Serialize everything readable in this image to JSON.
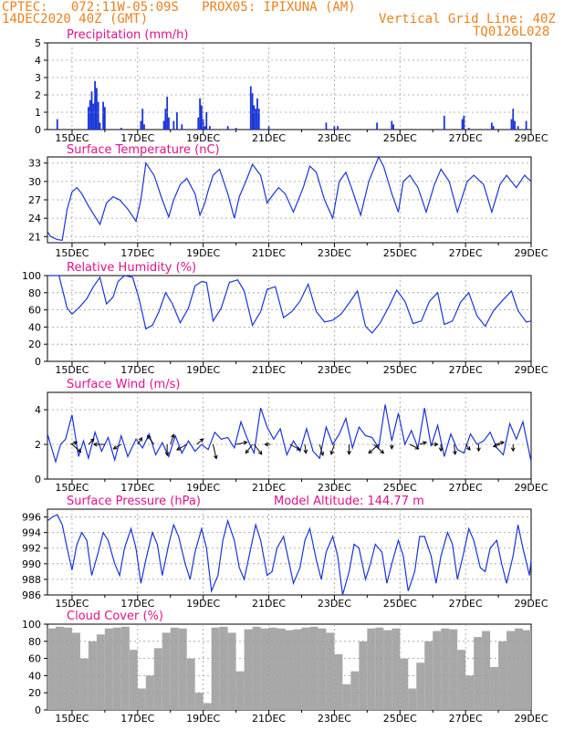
{
  "header": {
    "line1": "CPTEC:   072:11W-05:09S   PROX05: IPIXUNA (AM)",
    "line2_left": "14DEC2020 40Z (GMT)",
    "line2_right": "Vertical Grid Line: 40Z",
    "line3_right": "TQ0126L028"
  },
  "x_ticks": [
    "15DEC",
    "17DEC",
    "19DEC",
    "21DEC",
    "23DEC",
    "25DEC",
    "27DEC",
    "29DEC"
  ],
  "colors": {
    "header": "#e8821e",
    "title": "#e0128a",
    "series": "#1a35d8",
    "cloud": "#a8a8a8",
    "grid": "#9a9a9a",
    "arrow": "#000000"
  },
  "chart_data": [
    {
      "type": "bar",
      "title": "Precipitation (mm/h)",
      "xlim": [
        14.25,
        29.0
      ],
      "ylim": [
        0,
        5
      ],
      "yticks": [
        0,
        1,
        2,
        3,
        4,
        5
      ],
      "x": [
        14.55,
        15.5,
        15.55,
        15.6,
        15.65,
        15.7,
        15.75,
        15.8,
        15.85,
        15.95,
        16.0,
        16.5,
        17.1,
        17.15,
        17.2,
        17.8,
        17.85,
        17.9,
        17.95,
        18.1,
        18.2,
        18.35,
        18.85,
        18.9,
        18.95,
        19.0,
        19.05,
        19.1,
        19.2,
        19.75,
        20.0,
        20.45,
        20.5,
        20.55,
        20.6,
        20.65,
        20.7,
        21.0,
        22.75,
        23.0,
        23.1,
        24.3,
        24.75,
        24.8,
        26.35,
        26.9,
        26.95,
        27.1,
        27.8,
        27.85,
        28.4,
        28.45,
        28.5,
        28.6,
        28.85
      ],
      "values": [
        0.6,
        1.3,
        1.7,
        2.2,
        1.5,
        2.8,
        2.4,
        1.6,
        0.4,
        1.6,
        1.3,
        0.1,
        0.5,
        1.2,
        0.3,
        0.5,
        1.2,
        1.9,
        0.7,
        0.5,
        1.0,
        0.3,
        0.7,
        1.8,
        1.4,
        0.6,
        0.2,
        1.0,
        0.2,
        0.2,
        0.1,
        2.5,
        2.1,
        1.4,
        1.2,
        1.8,
        1.2,
        0.2,
        0.4,
        0.2,
        0.2,
        0.4,
        0.5,
        0.3,
        0.8,
        0.6,
        0.8,
        0.1,
        0.4,
        0.2,
        0.6,
        1.2,
        0.5,
        0.2,
        0.5
      ]
    },
    {
      "type": "line",
      "title": "Surface Temperature (nC)",
      "xlim": [
        14.25,
        29.0
      ],
      "ylim": [
        20,
        34
      ],
      "yticks": [
        21,
        24,
        27,
        30,
        33
      ],
      "x": [
        14.25,
        14.35,
        14.55,
        14.7,
        14.85,
        15.0,
        15.15,
        15.3,
        15.5,
        15.85,
        16.05,
        16.25,
        16.45,
        16.7,
        16.95,
        17.1,
        17.25,
        17.5,
        17.75,
        17.95,
        18.1,
        18.3,
        18.5,
        18.75,
        18.9,
        19.05,
        19.15,
        19.3,
        19.5,
        19.75,
        19.95,
        20.1,
        20.3,
        20.5,
        20.75,
        20.95,
        21.15,
        21.3,
        21.5,
        21.75,
        22.05,
        22.25,
        22.45,
        22.7,
        22.95,
        23.15,
        23.35,
        23.55,
        23.8,
        24.05,
        24.35,
        24.5,
        24.75,
        24.95,
        25.1,
        25.3,
        25.55,
        25.8,
        26.05,
        26.25,
        26.5,
        26.75,
        27.05,
        27.25,
        27.55,
        27.8,
        28.05,
        28.25,
        28.55,
        28.8,
        29.0
      ],
      "values": [
        21.8,
        21.0,
        20.5,
        20.4,
        25.5,
        28.3,
        29.0,
        28.0,
        26.0,
        23.0,
        26.5,
        27.5,
        27.0,
        25.5,
        23.5,
        27.0,
        33.0,
        31.0,
        27.0,
        24.2,
        27.0,
        29.5,
        30.5,
        28.0,
        24.5,
        26.5,
        28.5,
        31.0,
        32.0,
        28.0,
        24.0,
        27.5,
        30.0,
        32.8,
        31.0,
        26.5,
        28.0,
        29.0,
        28.0,
        25.0,
        29.0,
        32.5,
        31.5,
        27.0,
        24.0,
        30.0,
        31.5,
        28.5,
        24.5,
        30.0,
        34.0,
        32.5,
        28.0,
        25.0,
        30.0,
        31.0,
        29.0,
        25.0,
        29.5,
        32.0,
        30.0,
        25.0,
        30.0,
        31.0,
        29.5,
        25.0,
        29.5,
        31.0,
        29.0,
        31.0,
        30.0
      ]
    },
    {
      "type": "line",
      "title": "Relative Humidity (%)",
      "xlim": [
        14.25,
        29.0
      ],
      "ylim": [
        0,
        100
      ],
      "yticks": [
        0,
        20,
        40,
        60,
        80,
        100
      ],
      "x": [
        14.25,
        14.6,
        14.85,
        15.0,
        15.2,
        15.45,
        15.65,
        15.85,
        16.05,
        16.25,
        16.4,
        16.6,
        16.85,
        17.05,
        17.25,
        17.45,
        17.65,
        17.85,
        18.05,
        18.3,
        18.55,
        18.75,
        18.95,
        19.1,
        19.3,
        19.55,
        19.8,
        20.05,
        20.25,
        20.5,
        20.75,
        20.95,
        21.2,
        21.45,
        21.7,
        21.95,
        22.2,
        22.45,
        22.7,
        22.95,
        23.2,
        23.45,
        23.7,
        23.95,
        24.15,
        24.4,
        24.65,
        24.9,
        25.15,
        25.4,
        25.65,
        25.9,
        26.15,
        26.35,
        26.6,
        26.85,
        27.1,
        27.35,
        27.6,
        27.85,
        28.15,
        28.4,
        28.6,
        28.85,
        29.0
      ],
      "values": [
        100,
        100,
        62,
        55,
        62,
        73,
        87,
        98,
        67,
        75,
        93,
        100,
        98,
        72,
        38,
        42,
        58,
        80,
        68,
        45,
        62,
        88,
        93,
        92,
        47,
        62,
        92,
        95,
        82,
        42,
        58,
        84,
        87,
        51,
        58,
        70,
        90,
        58,
        46,
        48,
        55,
        68,
        82,
        41,
        33,
        45,
        63,
        83,
        70,
        44,
        47,
        70,
        80,
        43,
        47,
        69,
        80,
        53,
        41,
        59,
        72,
        82,
        59,
        46,
        47
      ]
    },
    {
      "type": "line",
      "title": "Surface Wind (m/s)",
      "xlim": [
        14.25,
        29.0
      ],
      "ylim": [
        0,
        5
      ],
      "yticks": [
        0,
        2,
        4
      ],
      "x": [
        14.25,
        14.5,
        14.65,
        14.8,
        15.0,
        15.2,
        15.35,
        15.5,
        15.7,
        15.9,
        16.1,
        16.3,
        16.5,
        16.7,
        16.95,
        17.15,
        17.35,
        17.55,
        17.75,
        17.95,
        18.15,
        18.35,
        18.55,
        18.75,
        18.95,
        19.15,
        19.35,
        19.55,
        19.75,
        19.95,
        20.15,
        20.35,
        20.55,
        20.75,
        20.95,
        21.15,
        21.35,
        21.55,
        21.75,
        21.95,
        22.15,
        22.35,
        22.55,
        22.75,
        22.95,
        23.15,
        23.35,
        23.55,
        23.75,
        23.95,
        24.15,
        24.35,
        24.55,
        24.75,
        24.95,
        25.15,
        25.35,
        25.55,
        25.75,
        25.95,
        26.15,
        26.35,
        26.55,
        26.75,
        26.95,
        27.15,
        27.35,
        27.55,
        27.75,
        27.95,
        28.15,
        28.35,
        28.55,
        28.75,
        29.0
      ],
      "values": [
        2.6,
        1.0,
        2.0,
        2.3,
        3.7,
        1.3,
        2.2,
        1.2,
        2.7,
        1.6,
        2.4,
        1.1,
        2.5,
        1.3,
        2.3,
        1.8,
        2.6,
        1.4,
        2.1,
        1.3,
        2.5,
        1.5,
        2.2,
        1.6,
        2.0,
        1.7,
        2.7,
        2.3,
        2.4,
        1.8,
        3.3,
        2.3,
        1.5,
        4.1,
        3.0,
        2.3,
        2.9,
        1.4,
        2.2,
        1.6,
        2.9,
        1.6,
        1.2,
        3.0,
        2.0,
        2.6,
        3.5,
        1.8,
        3.0,
        2.5,
        2.4,
        1.8,
        4.3,
        2.2,
        3.8,
        2.0,
        2.8,
        1.8,
        4.1,
        1.9,
        3.1,
        1.3,
        2.6,
        1.7,
        1.5,
        2.6,
        2.0,
        2.2,
        2.7,
        1.8,
        1.4,
        3.2,
        2.3,
        3.3,
        1.0
      ],
      "arrows": [
        {
          "x": 14.95,
          "u": 0.6,
          "v": 0.2
        },
        {
          "x": 15.0,
          "u": 0.8,
          "v": -0.7
        },
        {
          "x": 15.5,
          "u": 0.5,
          "v": 0.5
        },
        {
          "x": 16.0,
          "u": -1.0,
          "v": 0.0
        },
        {
          "x": 16.5,
          "u": -0.7,
          "v": -0.4
        },
        {
          "x": 17.0,
          "u": 0.4,
          "v": 0.6
        },
        {
          "x": 17.5,
          "u": -0.6,
          "v": 0.8
        },
        {
          "x": 17.9,
          "u": 0.0,
          "v": -1.0
        },
        {
          "x": 18.0,
          "u": 0.3,
          "v": 0.9
        },
        {
          "x": 18.5,
          "u": -0.9,
          "v": -0.5
        },
        {
          "x": 18.8,
          "u": 0.6,
          "v": 0.5
        },
        {
          "x": 19.3,
          "u": 0.3,
          "v": -1.3
        },
        {
          "x": 20.0,
          "u": 1.0,
          "v": 0.2
        },
        {
          "x": 20.5,
          "u": -0.6,
          "v": -0.8
        },
        {
          "x": 20.55,
          "u": 0.7,
          "v": -0.9
        },
        {
          "x": 21.05,
          "u": -0.5,
          "v": 0.0
        },
        {
          "x": 21.65,
          "u": 0.9,
          "v": -0.5
        },
        {
          "x": 22.1,
          "u": 0.1,
          "v": -0.8
        },
        {
          "x": 22.55,
          "u": 0.3,
          "v": -1.0
        },
        {
          "x": 23.0,
          "u": -0.3,
          "v": -0.9
        },
        {
          "x": 23.45,
          "u": 0.0,
          "v": -0.9
        },
        {
          "x": 24.2,
          "u": 0.9,
          "v": -0.8
        },
        {
          "x": 24.35,
          "u": -0.9,
          "v": -0.8
        },
        {
          "x": 24.75,
          "u": 0.0,
          "v": -0.4
        },
        {
          "x": 25.3,
          "u": 0.8,
          "v": -0.4
        },
        {
          "x": 25.6,
          "u": 0.6,
          "v": 0.2
        },
        {
          "x": 25.95,
          "u": 0.6,
          "v": 0.0
        },
        {
          "x": 26.25,
          "u": 0.0,
          "v": -0.6
        },
        {
          "x": 26.65,
          "u": 0.1,
          "v": -0.9
        },
        {
          "x": 27.0,
          "u": 0.4,
          "v": -0.5
        },
        {
          "x": 27.4,
          "u": 0.0,
          "v": -0.6
        },
        {
          "x": 27.9,
          "u": 0.8,
          "v": 0.2
        },
        {
          "x": 28.05,
          "u": -0.6,
          "v": -0.2
        },
        {
          "x": 28.45,
          "u": 0.0,
          "v": -0.6
        }
      ]
    },
    {
      "type": "line",
      "title": "Surface Pressure (hPa)",
      "annotation": "Model Altitude: 144.77 m",
      "xlim": [
        14.25,
        29.0
      ],
      "ylim": [
        986,
        997
      ],
      "yticks": [
        986,
        988,
        990,
        992,
        994,
        996
      ],
      "x": [
        14.25,
        14.4,
        14.55,
        14.7,
        14.85,
        15.0,
        15.15,
        15.3,
        15.45,
        15.6,
        15.8,
        15.95,
        16.1,
        16.3,
        16.45,
        16.6,
        16.8,
        16.95,
        17.1,
        17.25,
        17.45,
        17.6,
        17.75,
        17.95,
        18.1,
        18.25,
        18.45,
        18.6,
        18.75,
        18.95,
        19.1,
        19.25,
        19.45,
        19.6,
        19.75,
        19.95,
        20.1,
        20.25,
        20.45,
        20.6,
        20.75,
        20.95,
        21.1,
        21.25,
        21.45,
        21.6,
        21.75,
        21.95,
        22.1,
        22.25,
        22.45,
        22.6,
        22.75,
        22.95,
        23.1,
        23.25,
        23.45,
        23.6,
        23.75,
        23.95,
        24.1,
        24.25,
        24.45,
        24.6,
        24.75,
        24.95,
        25.1,
        25.25,
        25.45,
        25.6,
        25.75,
        25.95,
        26.1,
        26.25,
        26.45,
        26.6,
        26.75,
        26.95,
        27.1,
        27.25,
        27.45,
        27.6,
        27.75,
        27.95,
        28.1,
        28.25,
        28.45,
        28.6,
        28.75,
        28.95,
        29.0
      ],
      "values": [
        995.5,
        996.0,
        996.3,
        995.0,
        992.0,
        989.2,
        992.5,
        994.0,
        993.0,
        988.5,
        991.5,
        994.0,
        993.0,
        990.0,
        988.5,
        992.0,
        994.5,
        992.0,
        987.5,
        990.5,
        994.0,
        992.5,
        988.5,
        992.5,
        995.0,
        993.5,
        990.0,
        988.0,
        991.5,
        994.5,
        992.0,
        986.5,
        988.5,
        993.0,
        995.5,
        993.0,
        989.5,
        988.0,
        992.0,
        995.0,
        993.0,
        988.5,
        989.0,
        992.0,
        993.5,
        990.5,
        987.5,
        989.5,
        993.0,
        994.5,
        990.5,
        988.0,
        991.5,
        993.5,
        991.0,
        986.0,
        989.0,
        992.5,
        992.0,
        988.0,
        990.0,
        992.5,
        991.5,
        987.5,
        990.0,
        993.0,
        991.0,
        986.5,
        989.0,
        993.5,
        993.5,
        991.0,
        987.5,
        991.0,
        994.0,
        992.5,
        988.0,
        991.5,
        994.5,
        993.0,
        989.5,
        989.0,
        992.0,
        993.0,
        990.0,
        987.5,
        991.0,
        995.0,
        992.0,
        988.5,
        990.5
      ]
    },
    {
      "type": "bar",
      "title": "Cloud Cover (%)",
      "xlim": [
        14.25,
        29.0
      ],
      "ylim": [
        0,
        100
      ],
      "yticks": [
        0,
        20,
        40,
        60,
        80,
        100
      ],
      "x": [
        14.25,
        14.5,
        14.75,
        15.0,
        15.25,
        15.5,
        15.75,
        16.0,
        16.25,
        16.5,
        16.75,
        17.0,
        17.25,
        17.5,
        17.75,
        18.0,
        18.25,
        18.5,
        18.75,
        19.0,
        19.25,
        19.5,
        19.75,
        20.0,
        20.25,
        20.5,
        20.75,
        21.0,
        21.25,
        21.5,
        21.75,
        22.0,
        22.25,
        22.5,
        22.75,
        23.0,
        23.25,
        23.5,
        23.75,
        24.0,
        24.25,
        24.5,
        24.75,
        25.0,
        25.25,
        25.5,
        25.75,
        26.0,
        26.25,
        26.5,
        26.75,
        27.0,
        27.25,
        27.5,
        27.75,
        28.0,
        28.25,
        28.5,
        28.75
      ],
      "values": [
        95,
        97,
        96,
        90,
        60,
        80,
        88,
        95,
        96,
        97,
        70,
        25,
        40,
        72,
        90,
        96,
        95,
        60,
        20,
        8,
        96,
        97,
        90,
        45,
        94,
        97,
        95,
        96,
        95,
        93,
        94,
        96,
        97,
        95,
        90,
        65,
        30,
        45,
        80,
        95,
        96,
        93,
        95,
        60,
        25,
        55,
        80,
        92,
        95,
        94,
        70,
        40,
        85,
        92,
        50,
        80,
        92,
        95,
        93
      ]
    }
  ]
}
